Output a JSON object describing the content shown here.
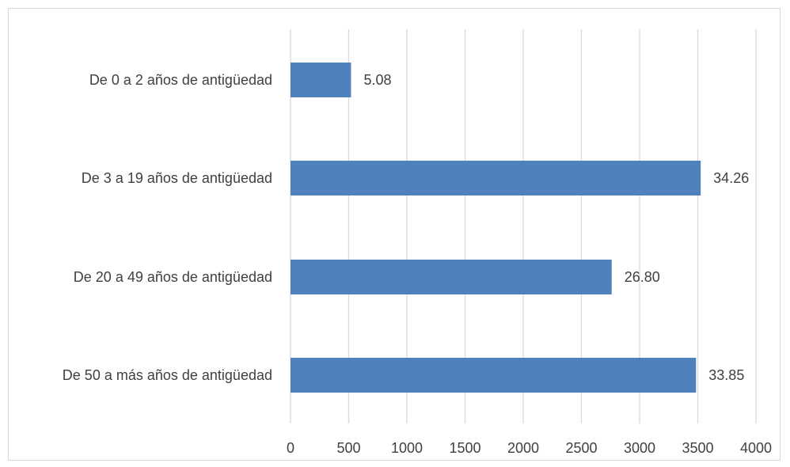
{
  "chart_data": {
    "type": "bar",
    "orientation": "horizontal",
    "categories": [
      "De 0 a 2 años de antigüedad",
      "De 3 a 19 años de antigüedad",
      "De 20 a 49 años de antigüedad",
      "De 50 a más años de antigüedad"
    ],
    "values": [
      520,
      3525,
      2760,
      3485
    ],
    "data_labels": [
      "5.08",
      "34.26",
      "26.80",
      "33.85"
    ],
    "xlim": [
      0,
      4000
    ],
    "xticks": [
      0,
      500,
      1000,
      1500,
      2000,
      2500,
      3000,
      3500,
      4000
    ],
    "xtick_labels": [
      "0",
      "500",
      "1000",
      "1500",
      "2000",
      "2500",
      "3000",
      "3500",
      "4000"
    ],
    "grid": "vertical",
    "legend": "none",
    "colors": {
      "bar": "#4f81bd",
      "grid": "#d9d9d9",
      "text": "#404040",
      "border": "#d9d9d9"
    }
  }
}
